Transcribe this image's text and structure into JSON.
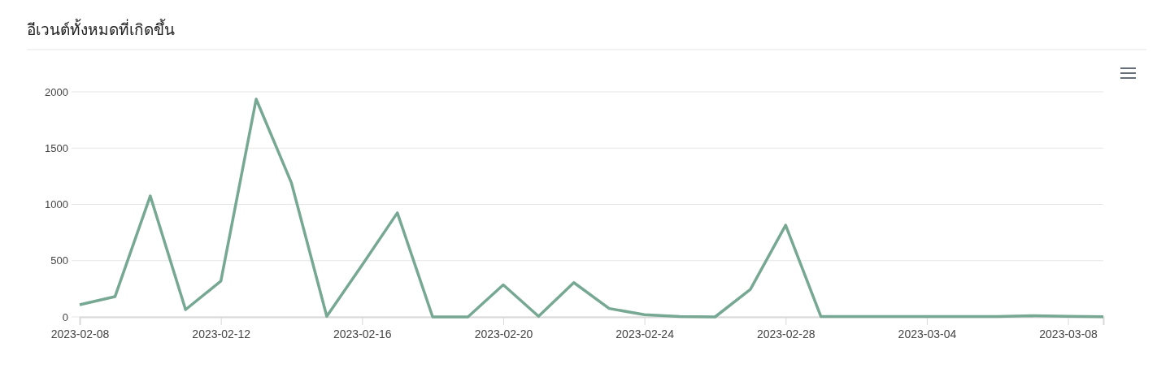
{
  "chart_data": {
    "type": "line",
    "title": "อีเวนต์ทั้งหมดที่เกิดขึ้น",
    "x": [
      "2023-02-08",
      "2023-02-09",
      "2023-02-10",
      "2023-02-11",
      "2023-02-12",
      "2023-02-13",
      "2023-02-14",
      "2023-02-15",
      "2023-02-16",
      "2023-02-17",
      "2023-02-18",
      "2023-02-19",
      "2023-02-20",
      "2023-02-21",
      "2023-02-22",
      "2023-02-23",
      "2023-02-24",
      "2023-02-25",
      "2023-02-26",
      "2023-02-27",
      "2023-02-28",
      "2023-03-01",
      "2023-03-02",
      "2023-03-03",
      "2023-03-04",
      "2023-03-05",
      "2023-03-06",
      "2023-03-07",
      "2023-03-08",
      "2023-03-09"
    ],
    "series": [
      {
        "color": "#76a893",
        "values": [
          108,
          180,
          1075,
          65,
          318,
          1935,
          1190,
          5,
          460,
          925,
          0,
          0,
          285,
          5,
          305,
          75,
          20,
          3,
          0,
          245,
          815,
          3,
          3,
          3,
          3,
          3,
          3,
          10,
          5,
          2
        ]
      }
    ],
    "xlim": [
      "2023-02-08",
      "2023-03-09"
    ],
    "xticks": [
      "2023-02-08",
      "2023-02-12",
      "2023-02-16",
      "2023-02-20",
      "2023-02-24",
      "2023-02-28",
      "2023-03-04",
      "2023-03-08"
    ],
    "ylim": [
      0,
      2000
    ],
    "yticks": [
      0,
      500,
      1000,
      1500,
      2000
    ],
    "grid": "y",
    "marker": "none",
    "line_style": "solid"
  }
}
